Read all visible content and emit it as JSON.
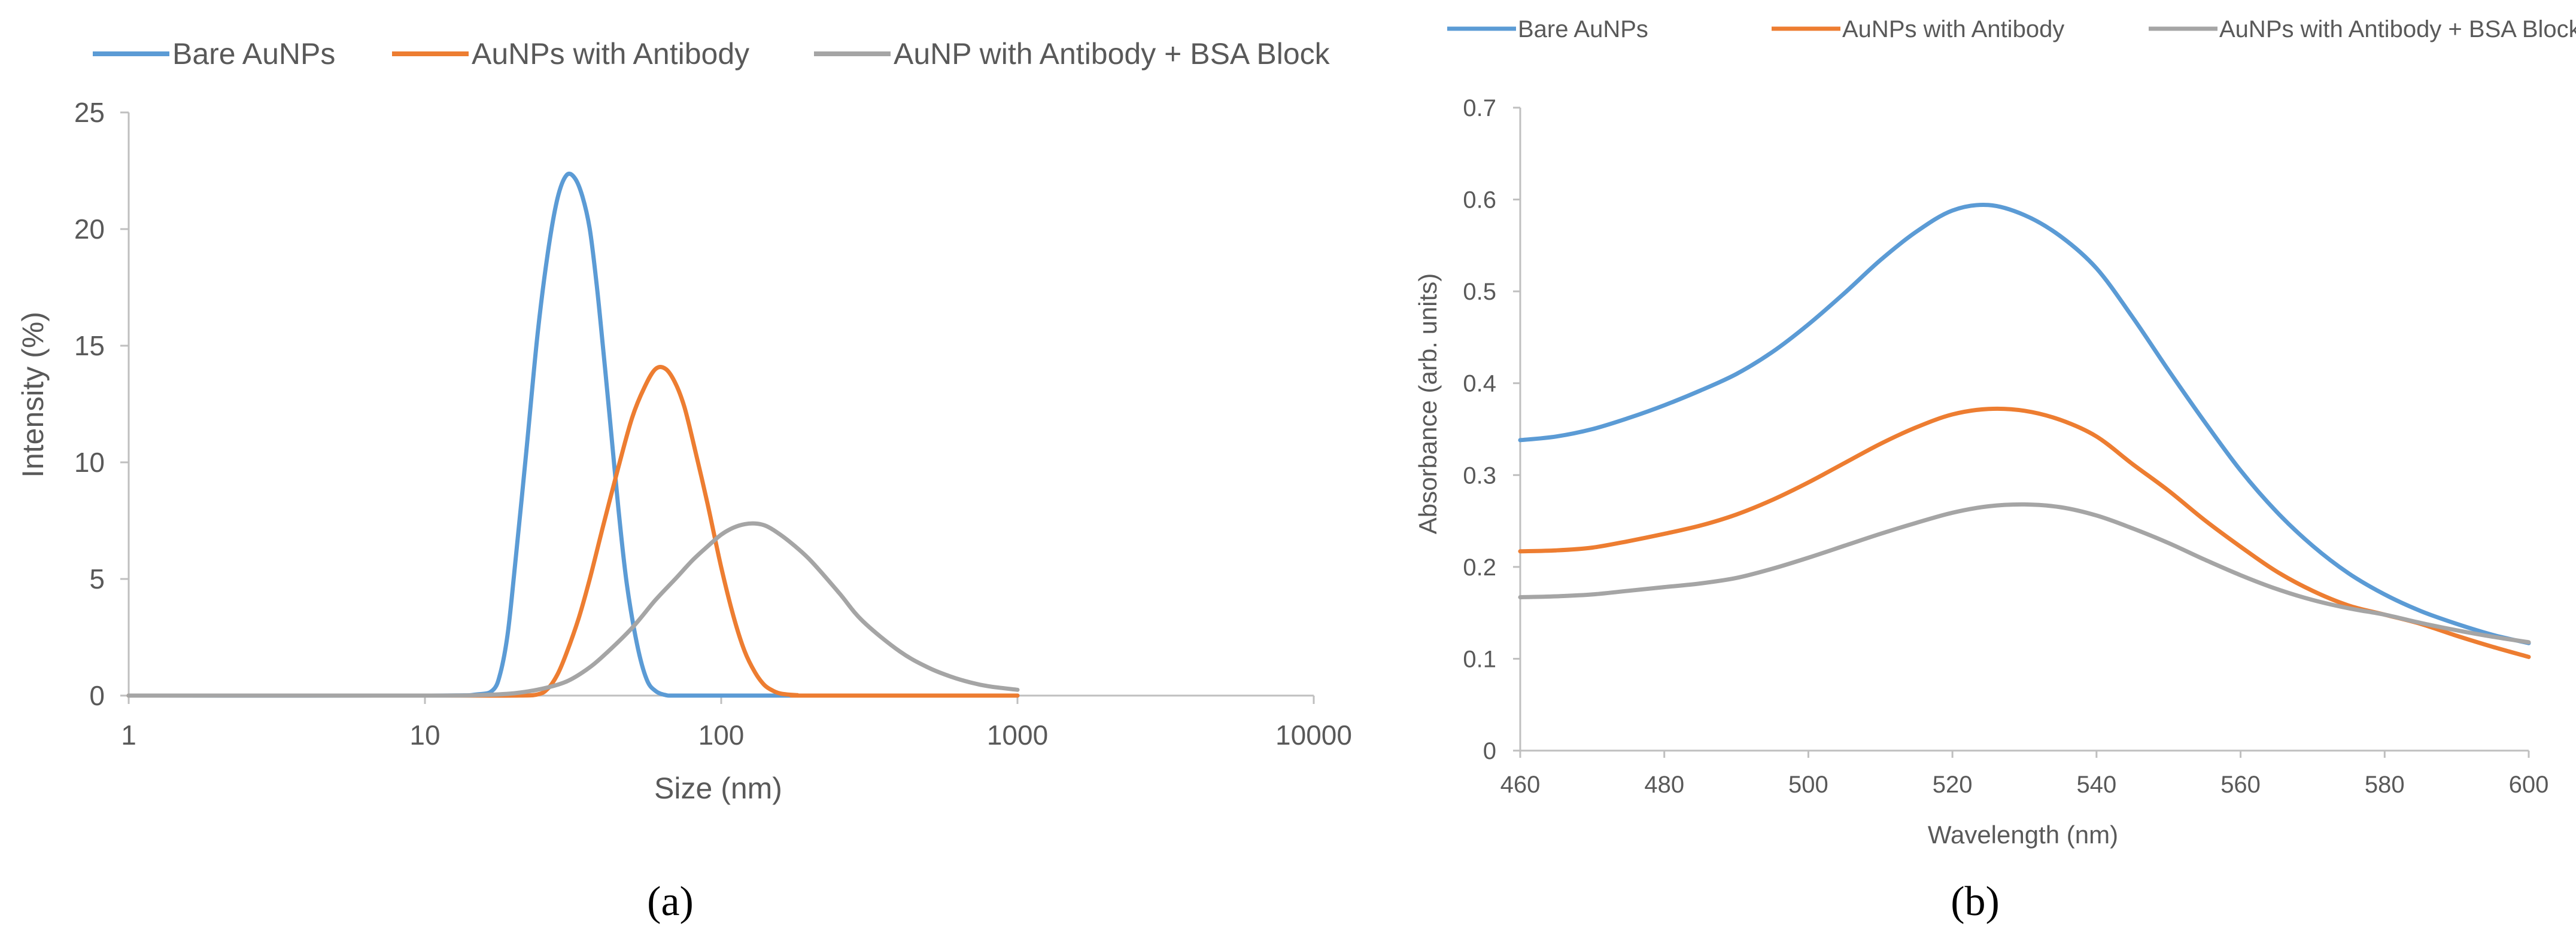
{
  "chart_data": [
    {
      "type": "line",
      "panel_label": "(a)",
      "xlabel": "Size (nm)",
      "ylabel": "Intensity (%)",
      "x_scale": "log",
      "xlim": [
        1,
        10000
      ],
      "ylim": [
        0,
        25
      ],
      "x_ticks": [
        "1",
        "10",
        "100",
        "1000",
        "10000"
      ],
      "y_ticks": [
        "0",
        "5",
        "10",
        "15",
        "20",
        "25"
      ],
      "grid": false,
      "legend_position": "top",
      "series": [
        {
          "name": "Bare AuNPs",
          "color": "#5B9BD5",
          "x": [
            1,
            10,
            15,
            17,
            18,
            19,
            20,
            22,
            24,
            26,
            28,
            30,
            32,
            34,
            36,
            38,
            40,
            42,
            45,
            48,
            52,
            56,
            60,
            65,
            70,
            100,
            200,
            1000
          ],
          "y": [
            0,
            0,
            0.05,
            0.25,
            1.0,
            2.6,
            5.2,
            10.5,
            15.5,
            19.0,
            21.3,
            22.3,
            22.2,
            21.4,
            20.0,
            17.6,
            14.8,
            12.0,
            8.0,
            4.8,
            2.2,
            0.7,
            0.2,
            0.02,
            0,
            0,
            0,
            0
          ]
        },
        {
          "name": "AuNPs with Antibody",
          "color": "#ED7D31",
          "x": [
            1,
            10,
            20,
            24,
            26,
            28,
            30,
            33,
            36,
            40,
            45,
            50,
            55,
            60,
            65,
            70,
            75,
            80,
            90,
            100,
            110,
            120,
            130,
            140,
            150,
            160,
            180,
            200,
            1000
          ],
          "y": [
            0,
            0,
            0,
            0.05,
            0.3,
            0.9,
            1.8,
            3.3,
            5.0,
            7.3,
            9.8,
            11.9,
            13.2,
            14.0,
            14.0,
            13.4,
            12.4,
            11.0,
            8.2,
            5.5,
            3.4,
            1.9,
            1.0,
            0.45,
            0.2,
            0.08,
            0.02,
            0,
            0
          ]
        },
        {
          "name": "AuNP with Antibody + BSA Block",
          "color": "#A5A5A5",
          "x": [
            1,
            10,
            15,
            20,
            25,
            30,
            35,
            40,
            50,
            60,
            70,
            80,
            90,
            100,
            110,
            120,
            130,
            140,
            150,
            170,
            200,
            250,
            300,
            400,
            500,
            600,
            700,
            800,
            1000
          ],
          "y": [
            0,
            0,
            0.02,
            0.1,
            0.3,
            0.6,
            1.1,
            1.7,
            2.9,
            4.1,
            5.0,
            5.8,
            6.4,
            6.9,
            7.2,
            7.35,
            7.38,
            7.3,
            7.1,
            6.6,
            5.8,
            4.4,
            3.2,
            1.9,
            1.2,
            0.8,
            0.55,
            0.4,
            0.25
          ]
        }
      ]
    },
    {
      "type": "line",
      "panel_label": "(b)",
      "xlabel": "Wavelength (nm)",
      "ylabel": "Absorbance (arb. units)",
      "xlim": [
        460,
        600
      ],
      "ylim": [
        0,
        0.7
      ],
      "x_ticks": [
        "460",
        "480",
        "500",
        "520",
        "540",
        "560",
        "580",
        "600"
      ],
      "y_ticks": [
        "0",
        "0.1",
        "0.2",
        "0.3",
        "0.4",
        "0.5",
        "0.6",
        "0.7"
      ],
      "grid": false,
      "legend_position": "top",
      "series": [
        {
          "name": "Bare AuNPs",
          "color": "#5B9BD5",
          "x": [
            460,
            465,
            470,
            475,
            480,
            485,
            490,
            495,
            500,
            505,
            510,
            515,
            520,
            525,
            530,
            535,
            540,
            545,
            550,
            555,
            560,
            565,
            570,
            575,
            580,
            585,
            590,
            595,
            600
          ],
          "y": [
            0.338,
            0.342,
            0.35,
            0.362,
            0.376,
            0.392,
            0.41,
            0.434,
            0.464,
            0.498,
            0.534,
            0.565,
            0.588,
            0.594,
            0.583,
            0.56,
            0.525,
            0.472,
            0.414,
            0.358,
            0.305,
            0.26,
            0.223,
            0.193,
            0.17,
            0.152,
            0.138,
            0.126,
            0.117
          ]
        },
        {
          "name": "AuNPs with Antibody",
          "color": "#ED7D31",
          "x": [
            460,
            465,
            470,
            475,
            480,
            485,
            490,
            495,
            500,
            505,
            510,
            515,
            520,
            525,
            530,
            535,
            540,
            545,
            550,
            555,
            560,
            565,
            570,
            575,
            580,
            585,
            590,
            595,
            600
          ],
          "y": [
            0.217,
            0.218,
            0.221,
            0.228,
            0.236,
            0.245,
            0.257,
            0.273,
            0.292,
            0.313,
            0.334,
            0.352,
            0.366,
            0.372,
            0.37,
            0.36,
            0.342,
            0.312,
            0.283,
            0.251,
            0.222,
            0.195,
            0.174,
            0.158,
            0.148,
            0.138,
            0.125,
            0.113,
            0.102
          ]
        },
        {
          "name": "AuNP with Antibody + BSA Block",
          "color": "#A5A5A5",
          "x": [
            460,
            465,
            470,
            475,
            480,
            485,
            490,
            495,
            500,
            505,
            510,
            515,
            520,
            525,
            530,
            535,
            540,
            545,
            550,
            555,
            560,
            565,
            570,
            575,
            580,
            585,
            590,
            595,
            600
          ],
          "y": [
            0.167,
            0.168,
            0.17,
            0.174,
            0.178,
            0.182,
            0.188,
            0.198,
            0.21,
            0.223,
            0.236,
            0.248,
            0.259,
            0.266,
            0.268,
            0.265,
            0.256,
            0.242,
            0.226,
            0.208,
            0.191,
            0.176,
            0.164,
            0.155,
            0.148,
            0.139,
            0.131,
            0.124,
            0.118
          ]
        }
      ]
    }
  ],
  "legend_b": [
    "Bare AuNPs",
    "AuNPs with Antibody",
    "AuNPs with Antibody + BSA Block"
  ]
}
